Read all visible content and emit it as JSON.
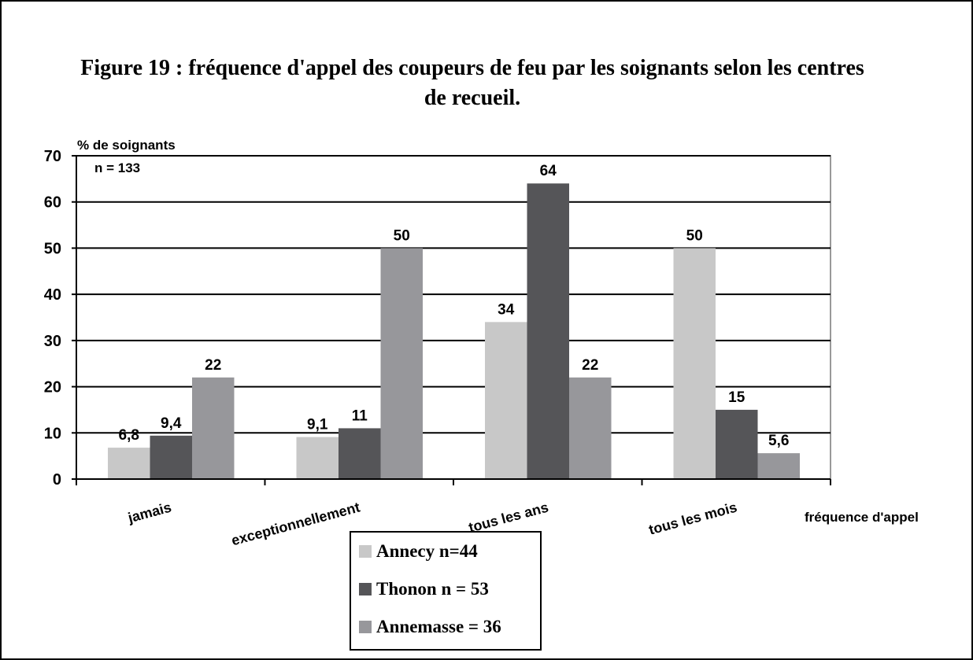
{
  "chart_data": {
    "type": "bar",
    "title": "Figure 19 : fréquence d'appel des coupeurs de feu par les soignants selon les centres de recueil.",
    "y_label": "% de soignants",
    "x_label": "fréquence d'appel",
    "annotation": "n = 133",
    "categories": [
      "jamais",
      "exceptionnellement",
      "tous les ans",
      "tous les mois"
    ],
    "series": [
      {
        "name": "Annecy n=44",
        "color": "#c8c8c8",
        "values": [
          6.8,
          9.1,
          34,
          50
        ],
        "value_labels": [
          "6,8",
          "9,1",
          "34",
          "50"
        ]
      },
      {
        "name": "Thonon n = 53",
        "color": "#555558",
        "values": [
          9.4,
          11,
          64,
          15
        ],
        "value_labels": [
          "9,4",
          "11",
          "64",
          "15"
        ]
      },
      {
        "name": "Annemasse = 36",
        "color": "#97979b",
        "values": [
          22,
          50,
          22,
          5.6
        ],
        "value_labels": [
          "22",
          "50",
          "22",
          "5,6"
        ]
      }
    ],
    "ylim": [
      0,
      70
    ],
    "yticks": [
      0,
      10,
      20,
      30,
      40,
      50,
      60,
      70
    ],
    "grid": true
  }
}
